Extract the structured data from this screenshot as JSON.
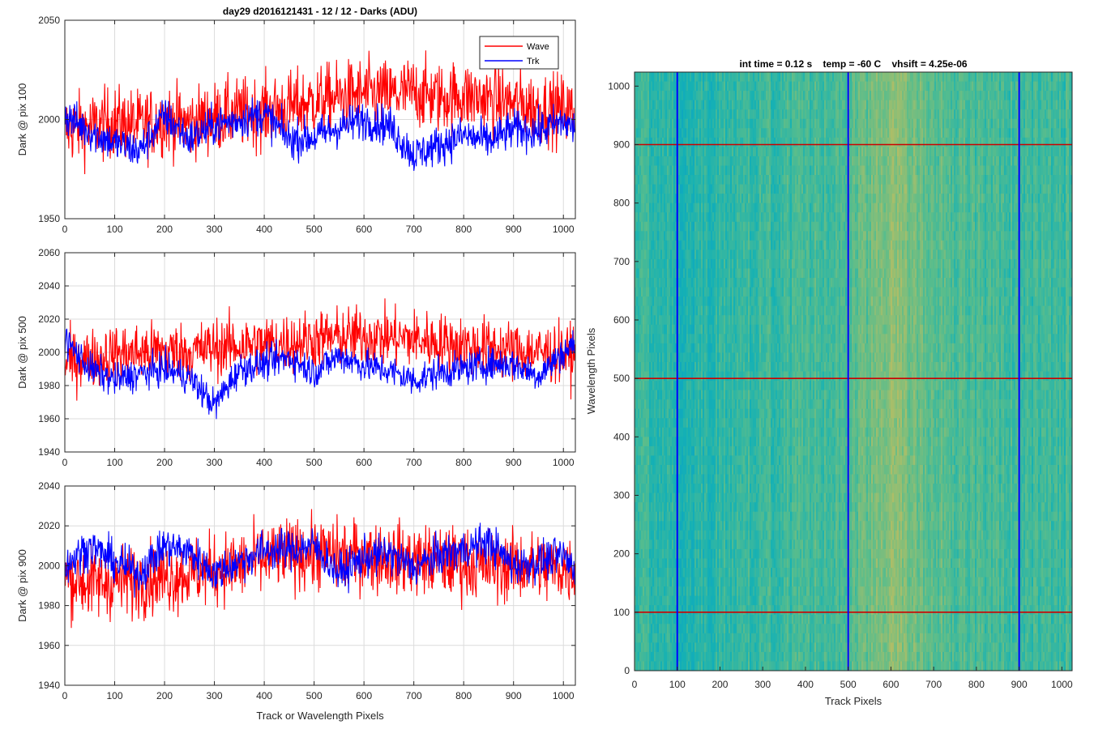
{
  "figure": {
    "title": "day29 d2016121431 - 12 / 12 - Darks (ADU)",
    "xlabel": "Track or Wavelength Pixels"
  },
  "colors": {
    "wave": "#ff0000",
    "trk": "#0000ff",
    "axis": "#262626",
    "grid": "#dcdcdc"
  },
  "legend": {
    "location": "top-right",
    "entries": [
      "Wave",
      "Trk"
    ]
  },
  "chart_data": [
    {
      "type": "line",
      "ylabel": "Dark @ pix 100",
      "xlim": [
        0,
        1024
      ],
      "ylim": [
        1950,
        2050
      ],
      "xticks": [
        0,
        100,
        200,
        300,
        400,
        500,
        600,
        700,
        800,
        900,
        1000
      ],
      "yticks": [
        1950,
        2000,
        2050
      ],
      "grid": true,
      "series": [
        {
          "name": "Wave",
          "x": [
            0,
            50,
            100,
            150,
            200,
            250,
            300,
            350,
            400,
            450,
            500,
            550,
            600,
            650,
            700,
            750,
            800,
            850,
            900,
            950,
            1000,
            1024
          ],
          "values": [
            1995,
            1996,
            1999,
            1997,
            2000,
            1998,
            2001,
            2003,
            2004,
            2006,
            2009,
            2011,
            2013,
            2012,
            2014,
            2011,
            2012,
            2010,
            2008,
            2006,
            2005,
            2003
          ]
        },
        {
          "name": "Trk",
          "x": [
            0,
            50,
            100,
            150,
            200,
            250,
            300,
            350,
            400,
            450,
            500,
            550,
            600,
            650,
            700,
            750,
            800,
            850,
            900,
            950,
            1000,
            1024
          ],
          "values": [
            2002,
            1994,
            1988,
            1984,
            2002,
            1990,
            1997,
            2000,
            2003,
            1990,
            1991,
            1996,
            2000,
            1997,
            1982,
            1987,
            1992,
            1989,
            1995,
            1994,
            1999,
            1995
          ]
        }
      ]
    },
    {
      "type": "line",
      "ylabel": "Dark @ pix 500",
      "xlim": [
        0,
        1024
      ],
      "ylim": [
        1940,
        2060
      ],
      "xticks": [
        0,
        100,
        200,
        300,
        400,
        500,
        600,
        700,
        800,
        900,
        1000
      ],
      "yticks": [
        1940,
        1960,
        1980,
        2000,
        2020,
        2040,
        2060
      ],
      "grid": true,
      "series": [
        {
          "name": "Wave",
          "x": [
            0,
            50,
            100,
            150,
            200,
            250,
            300,
            350,
            400,
            450,
            500,
            550,
            600,
            650,
            700,
            750,
            800,
            850,
            900,
            950,
            1000,
            1024
          ],
          "values": [
            1994,
            1996,
            1999,
            2000,
            2001,
            2000,
            2003,
            2004,
            2005,
            2006,
            2008,
            2009,
            2010,
            2009,
            2008,
            2006,
            2004,
            2003,
            2001,
            2000,
            1999,
            1998
          ]
        },
        {
          "name": "Trk",
          "x": [
            0,
            50,
            100,
            150,
            200,
            250,
            300,
            350,
            400,
            450,
            500,
            550,
            600,
            650,
            700,
            750,
            800,
            850,
            900,
            950,
            1000,
            1024
          ],
          "values": [
            2008,
            1990,
            1983,
            1987,
            1990,
            1985,
            1968,
            1990,
            1993,
            1997,
            1988,
            1998,
            1992,
            1989,
            1983,
            1988,
            1990,
            1993,
            1993,
            1986,
            2000,
            2005
          ]
        }
      ]
    },
    {
      "type": "line",
      "ylabel": "Dark @ pix 900",
      "xlim": [
        0,
        1024
      ],
      "ylim": [
        1940,
        2040
      ],
      "xticks": [
        0,
        100,
        200,
        300,
        400,
        500,
        600,
        700,
        800,
        900,
        1000
      ],
      "yticks": [
        1940,
        1960,
        1980,
        2000,
        2020,
        2040
      ],
      "grid": true,
      "series": [
        {
          "name": "Wave",
          "x": [
            0,
            50,
            100,
            150,
            200,
            250,
            300,
            350,
            400,
            450,
            500,
            550,
            600,
            650,
            700,
            750,
            800,
            850,
            900,
            950,
            1000,
            1024
          ],
          "values": [
            1994,
            1991,
            1992,
            1993,
            1994,
            1996,
            1998,
            2000,
            2003,
            2006,
            2006,
            2005,
            2005,
            2004,
            2003,
            2002,
            2001,
            2000,
            2000,
            1999,
            1999,
            1998
          ]
        },
        {
          "name": "Trk",
          "x": [
            0,
            50,
            100,
            150,
            200,
            250,
            300,
            350,
            400,
            450,
            500,
            550,
            600,
            650,
            700,
            750,
            800,
            850,
            900,
            950,
            1000,
            1024
          ],
          "values": [
            2000,
            2010,
            2002,
            1996,
            2010,
            2007,
            1996,
            2002,
            2008,
            2008,
            2010,
            1996,
            2004,
            2006,
            1999,
            2005,
            2008,
            2012,
            2000,
            2002,
            2005,
            1997
          ]
        }
      ]
    },
    {
      "type": "heatmap",
      "title": "int time = 0.12 s    temp = -60 C    vhsift = 4.25e-06",
      "xlabel": "Track Pixels",
      "ylabel": "Wavelength Pixels",
      "xlim": [
        0,
        1024
      ],
      "ylim": [
        0,
        1024
      ],
      "xticks": [
        0,
        100,
        200,
        300,
        400,
        500,
        600,
        700,
        800,
        900,
        1000
      ],
      "yticks": [
        0,
        100,
        200,
        300,
        400,
        500,
        600,
        700,
        800,
        900,
        1000
      ],
      "colormap": "parula",
      "column_profile": {
        "x": [
          0,
          50,
          100,
          150,
          200,
          250,
          300,
          350,
          400,
          450,
          500,
          550,
          600,
          650,
          700,
          750,
          800,
          850,
          900,
          950,
          1000,
          1024
        ],
        "values": [
          0.5,
          0.49,
          0.46,
          0.47,
          0.49,
          0.5,
          0.51,
          0.51,
          0.52,
          0.53,
          0.54,
          0.58,
          0.64,
          0.6,
          0.56,
          0.54,
          0.53,
          0.52,
          0.51,
          0.5,
          0.51,
          0.52
        ]
      },
      "marker_lines": {
        "vertical_x": [
          100,
          500,
          900
        ],
        "vertical_color": "#0000ff",
        "horizontal_y": [
          100,
          500,
          900
        ],
        "horizontal_color": "#cc0000"
      }
    }
  ]
}
